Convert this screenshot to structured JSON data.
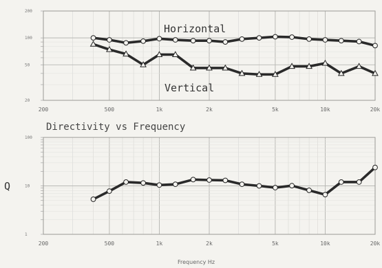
{
  "chart_data": [
    {
      "type": "line",
      "title": "",
      "xscale": "log",
      "yscale": "log",
      "xlim": [
        200,
        20000
      ],
      "ylim": [
        20,
        200
      ],
      "x_tick_labels": [
        "200",
        "500",
        "1k",
        "2k",
        "5k",
        "10k",
        "20k"
      ],
      "x_ticks": [
        200,
        500,
        1000,
        2000,
        5000,
        10000,
        20000
      ],
      "y_tick_labels": [
        "200",
        "100",
        "50",
        "20"
      ],
      "y_ticks": [
        200,
        100,
        50,
        20
      ],
      "grid": true,
      "series": [
        {
          "name": "Horizontal",
          "marker": "circle",
          "x": [
            400,
            500,
            630,
            800,
            1000,
            1250,
            1600,
            2000,
            2500,
            3150,
            4000,
            5000,
            6300,
            8000,
            10000,
            12500,
            16000,
            20000
          ],
          "values": [
            100,
            95,
            88,
            92,
            98,
            95,
            93,
            93,
            90,
            97,
            100,
            103,
            102,
            97,
            95,
            93,
            91,
            82
          ]
        },
        {
          "name": "Vertical",
          "marker": "triangle",
          "x": [
            400,
            500,
            630,
            800,
            1000,
            1250,
            1600,
            2000,
            2500,
            3150,
            4000,
            5000,
            6300,
            8000,
            10000,
            12500,
            16000,
            20000
          ],
          "values": [
            85,
            74,
            66,
            50,
            65,
            65,
            46,
            46,
            46,
            40,
            39,
            39,
            48,
            48,
            52,
            40,
            48,
            40
          ]
        }
      ]
    },
    {
      "type": "line",
      "title": "Directivity vs Frequency",
      "xlabel": "Frequency Hz",
      "ylabel": "Q",
      "xscale": "log",
      "yscale": "log",
      "xlim": [
        200,
        20000
      ],
      "ylim": [
        1,
        100
      ],
      "x_tick_labels": [
        "200",
        "500",
        "1k",
        "2k",
        "5k",
        "10k",
        "20k"
      ],
      "x_ticks": [
        200,
        500,
        1000,
        2000,
        5000,
        10000,
        20000
      ],
      "y_tick_labels": [
        "100",
        "10",
        "1"
      ],
      "y_ticks": [
        100,
        10,
        1
      ],
      "grid": true,
      "series": [
        {
          "marker": "circle",
          "x": [
            400,
            500,
            630,
            800,
            1000,
            1250,
            1600,
            2000,
            2500,
            3150,
            4000,
            5000,
            6300,
            8000,
            10000,
            12500,
            16000,
            20000
          ],
          "values": [
            5.3,
            7.8,
            12,
            11.5,
            10.4,
            10.8,
            13.5,
            13.2,
            13,
            10.8,
            10,
            9.2,
            10.1,
            8.1,
            6.6,
            12,
            12,
            24
          ]
        }
      ]
    }
  ]
}
